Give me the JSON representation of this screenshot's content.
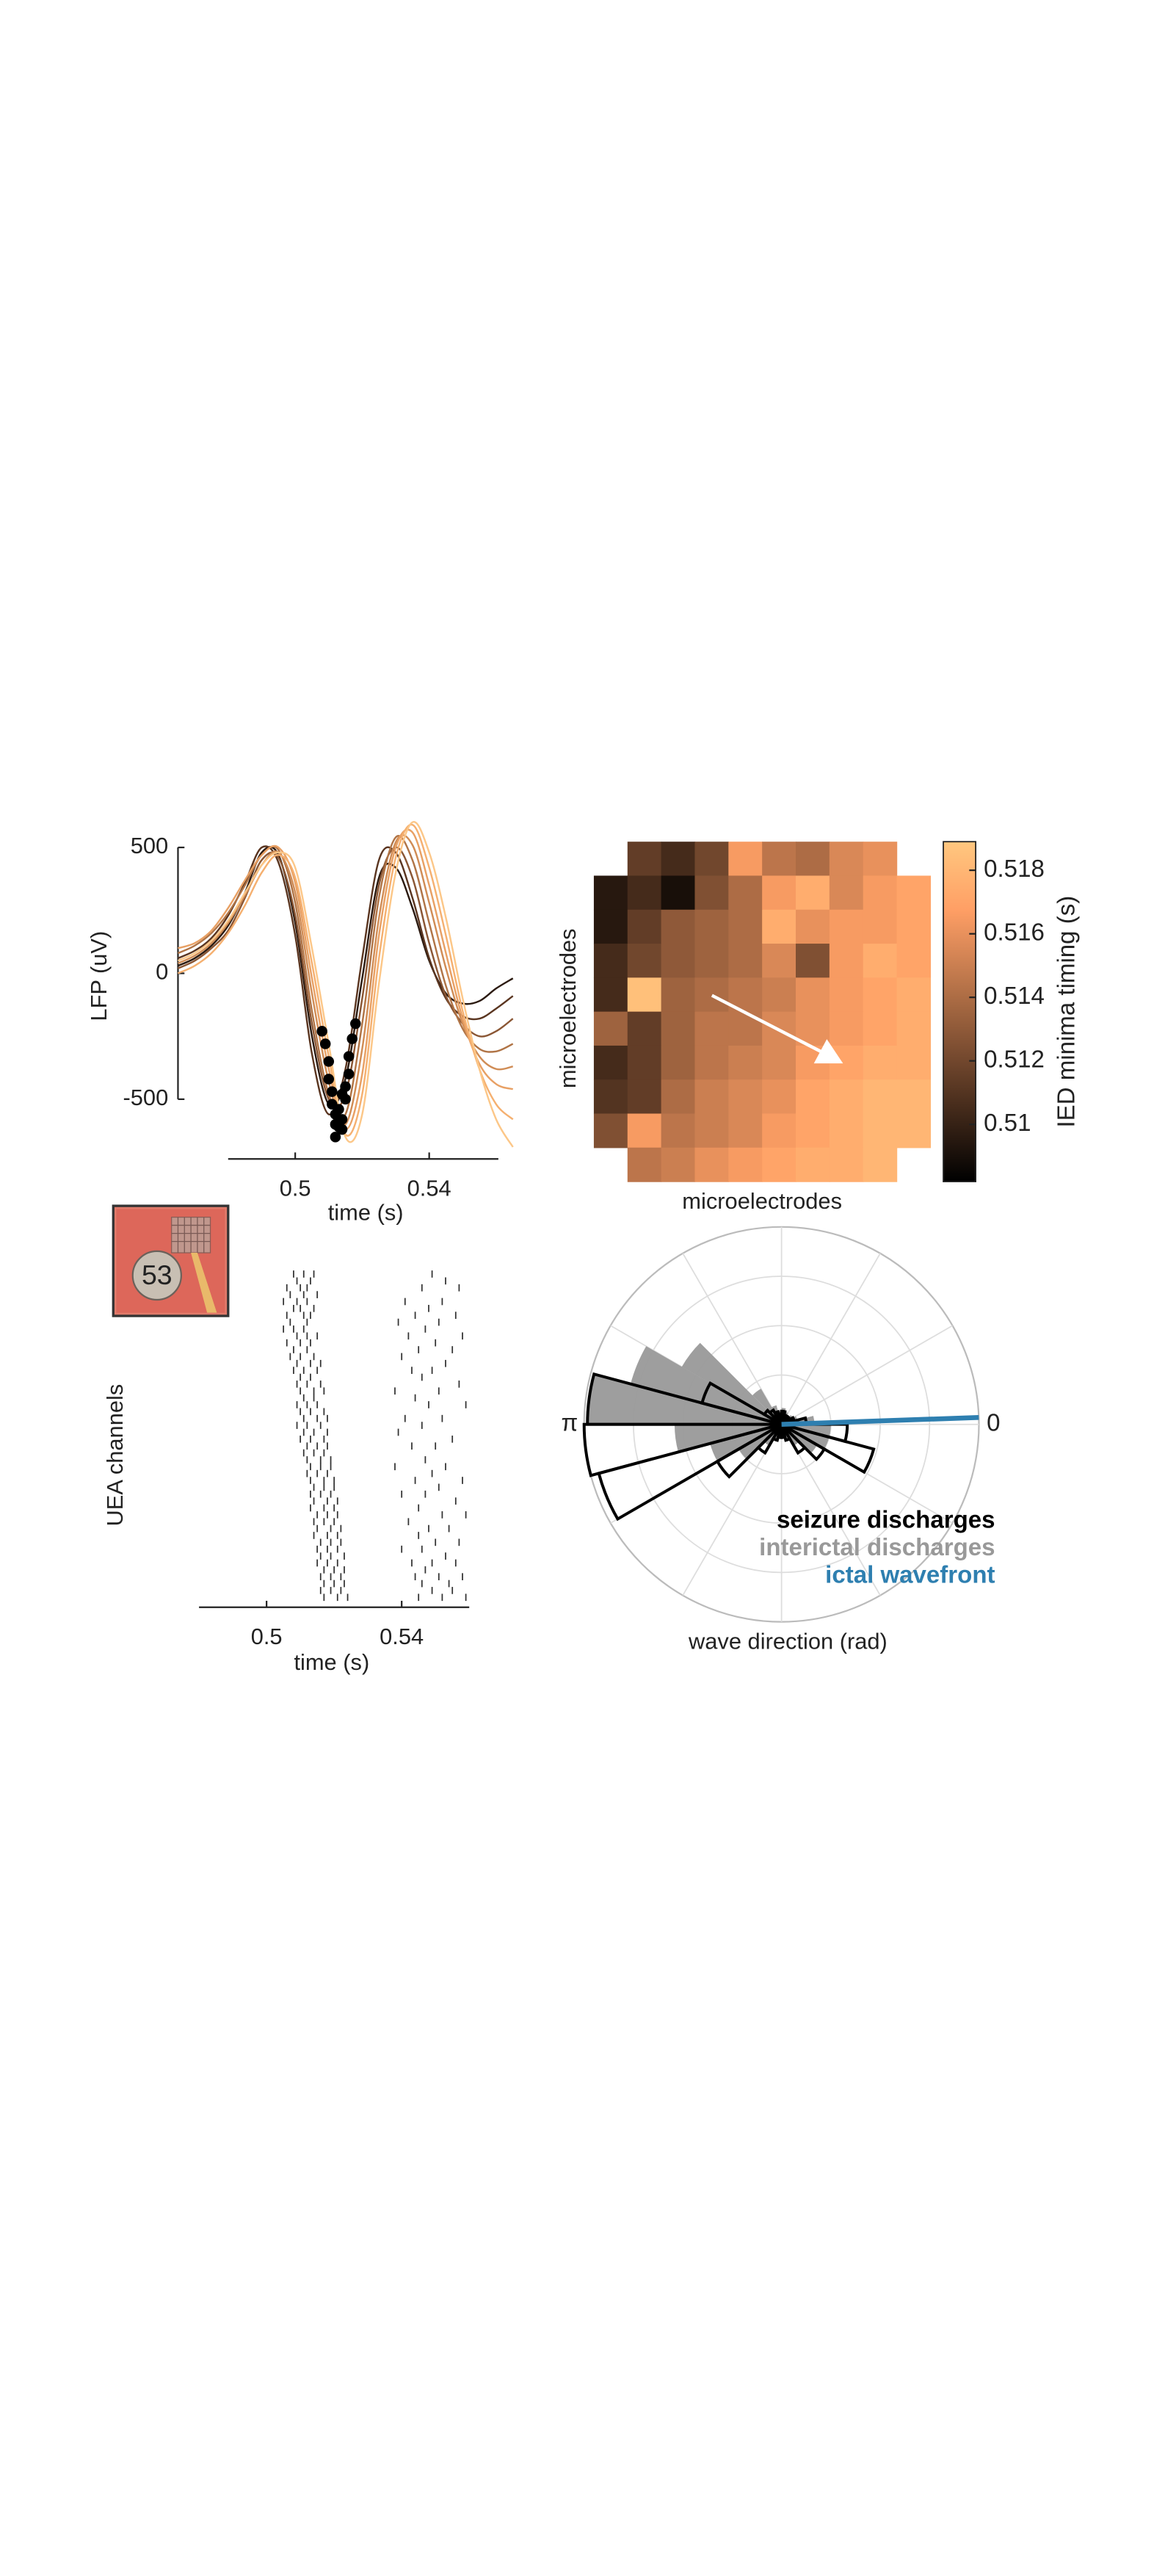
{
  "chart_data": [
    {
      "type": "line",
      "ylabel": "LFP (uV)",
      "xlabel": "time (s)",
      "xlim": [
        0.465,
        0.565
      ],
      "xticks": [
        0.5,
        0.54
      ],
      "ylim": [
        -750,
        600
      ],
      "yticks": [
        500,
        0,
        -500
      ],
      "x": [
        0.465,
        0.47,
        0.475,
        0.48,
        0.485,
        0.49,
        0.495,
        0.5,
        0.505,
        0.51,
        0.515,
        0.52,
        0.525,
        0.53,
        0.535,
        0.54,
        0.545,
        0.55,
        0.555,
        0.56,
        0.565
      ],
      "series": [
        {
          "color": "#2b1a10",
          "values": [
            30,
            60,
            110,
            190,
            320,
            480,
            470,
            200,
            -250,
            -520,
            -420,
            -20,
            380,
            420,
            260,
            50,
            -80,
            -120,
            -110,
            -60,
            -20
          ]
        },
        {
          "color": "#5a3520",
          "values": [
            60,
            90,
            140,
            230,
            360,
            500,
            440,
            150,
            -320,
            -560,
            -380,
            60,
            450,
            480,
            300,
            60,
            -100,
            -170,
            -180,
            -140,
            -90
          ]
        },
        {
          "color": "#8a5634",
          "values": [
            20,
            50,
            100,
            170,
            300,
            450,
            460,
            230,
            -200,
            -500,
            -480,
            -100,
            350,
            500,
            380,
            120,
            -90,
            -200,
            -250,
            -230,
            -180
          ]
        },
        {
          "color": "#b07446",
          "values": [
            80,
            110,
            160,
            240,
            350,
            470,
            490,
            280,
            -150,
            -480,
            -560,
            -200,
            300,
            540,
            450,
            200,
            -50,
            -220,
            -300,
            -310,
            -280
          ]
        },
        {
          "color": "#d08c55",
          "values": [
            40,
            70,
            120,
            200,
            310,
            430,
            480,
            320,
            -80,
            -430,
            -600,
            -300,
            220,
            520,
            510,
            280,
            20,
            -200,
            -330,
            -380,
            -370
          ]
        },
        {
          "color": "#e8a064",
          "values": [
            100,
            120,
            170,
            260,
            370,
            470,
            500,
            360,
            -20,
            -380,
            -620,
            -400,
            150,
            500,
            560,
            350,
            80,
            -180,
            -360,
            -440,
            -460
          ]
        },
        {
          "color": "#f5b070",
          "values": [
            0,
            30,
            80,
            160,
            270,
            400,
            470,
            380,
            40,
            -330,
            -640,
            -480,
            60,
            460,
            590,
            420,
            150,
            -150,
            -380,
            -520,
            -580
          ]
        },
        {
          "color": "#fcc788",
          "values": [
            50,
            80,
            130,
            210,
            320,
            430,
            480,
            420,
            100,
            -280,
            -650,
            -560,
            -40,
            400,
            600,
            480,
            220,
            -100,
            -380,
            -580,
            -690
          ]
        }
      ],
      "minima": {
        "color": "#000000",
        "x": [
          0.508,
          0.509,
          0.51,
          0.51,
          0.511,
          0.511,
          0.512,
          0.512,
          0.513,
          0.513,
          0.514,
          0.514,
          0.515,
          0.515,
          0.516,
          0.516,
          0.517,
          0.518,
          0.512,
          0.514
        ],
        "y": [
          -230,
          -280,
          -350,
          -420,
          -470,
          -520,
          -560,
          -600,
          -610,
          -540,
          -580,
          -620,
          -500,
          -450,
          -400,
          -330,
          -260,
          -200,
          -650,
          -480
        ]
      }
    },
    {
      "type": "heatmap",
      "xlabel": "microelectrodes",
      "ylabel": "microelectrodes",
      "colorbar_label": "IED minima timing (s)",
      "colormap": "copper",
      "clim": [
        0.5082,
        0.5189
      ],
      "cticks": [
        0.51,
        0.512,
        0.514,
        0.516,
        0.518
      ],
      "values": [
        [
          null,
          0.5115,
          0.5105,
          0.512,
          0.5165,
          0.5145,
          0.514,
          0.5155,
          0.516,
          null
        ],
        [
          0.5095,
          0.5105,
          0.509,
          0.5125,
          0.514,
          0.5165,
          0.5175,
          0.5155,
          0.5165,
          0.517
        ],
        [
          0.5095,
          0.5115,
          0.513,
          0.5135,
          0.514,
          0.5175,
          0.516,
          0.5165,
          0.5165,
          0.517
        ],
        [
          0.5105,
          0.512,
          0.513,
          0.5135,
          0.514,
          0.5155,
          0.5125,
          0.5165,
          0.5175,
          0.517
        ],
        [
          0.5105,
          0.5185,
          0.5135,
          0.514,
          0.5145,
          0.515,
          0.516,
          0.5165,
          0.517,
          0.5175
        ],
        [
          0.5135,
          0.5115,
          0.5135,
          0.5145,
          0.5145,
          0.5155,
          0.516,
          0.5165,
          0.517,
          0.5175
        ],
        [
          0.5105,
          0.5115,
          0.5135,
          0.5145,
          0.515,
          0.5155,
          0.5165,
          0.517,
          0.5175,
          0.5175
        ],
        [
          0.511,
          0.5115,
          0.514,
          0.515,
          0.5155,
          0.516,
          0.517,
          0.5175,
          0.518,
          0.518
        ],
        [
          0.5125,
          0.5165,
          0.5145,
          0.515,
          0.5155,
          0.5165,
          0.517,
          0.5175,
          0.518,
          0.518
        ],
        [
          null,
          0.5145,
          0.515,
          0.516,
          0.5165,
          0.517,
          0.5175,
          0.5175,
          0.518,
          null
        ]
      ]
    },
    {
      "type": "raster",
      "ylabel": "UEA channels",
      "xlabel": "time (s)",
      "inset_label": "53",
      "xlim": [
        0.48,
        0.56
      ],
      "xticks": [
        0.5,
        0.54
      ],
      "color": "#333333",
      "spike_times": [
        [
          0.508,
          0.511,
          0.514,
          0.549
        ],
        [
          0.509,
          0.513,
          0.553
        ],
        [
          0.506,
          0.51,
          0.512,
          0.546,
          0.557
        ],
        [
          0.507,
          0.511,
          0.515
        ],
        [
          0.505,
          0.509,
          0.512,
          0.541,
          0.552
        ],
        [
          0.508,
          0.51,
          0.514,
          0.548
        ],
        [
          0.506,
          0.511,
          0.513,
          0.544,
          0.556
        ],
        [
          0.507,
          0.512,
          0.539,
          0.551
        ],
        [
          0.505,
          0.508,
          0.511,
          0.547
        ],
        [
          0.509,
          0.512,
          0.515,
          0.542,
          0.558
        ],
        [
          0.506,
          0.51,
          0.513,
          0.55
        ],
        [
          0.508,
          0.512,
          0.545,
          0.555
        ],
        [
          0.507,
          0.51,
          0.514,
          0.54
        ],
        [
          0.509,
          0.513,
          0.516,
          0.553
        ],
        [
          0.508,
          0.511,
          0.515,
          0.543,
          0.549
        ],
        [
          0.51,
          0.513,
          0.546
        ],
        [
          0.509,
          0.512,
          0.516,
          0.557
        ],
        [
          0.51,
          0.514,
          0.517,
          0.538,
          0.551
        ],
        [
          0.511,
          0.514,
          0.544
        ],
        [
          0.509,
          0.512,
          0.515,
          0.548,
          0.559
        ],
        [
          0.51,
          0.513,
          0.517
        ],
        [
          0.511,
          0.515,
          0.518,
          0.541,
          0.552
        ],
        [
          0.509,
          0.512,
          0.516,
          0.546
        ],
        [
          0.511,
          0.514,
          0.518,
          0.539
        ],
        [
          0.51,
          0.513,
          0.517,
          0.555
        ],
        [
          0.512,
          0.515,
          0.518,
          0.543,
          0.55
        ],
        [
          0.511,
          0.514,
          0.517
        ],
        [
          0.512,
          0.516,
          0.519,
          0.547
        ],
        [
          0.513,
          0.516,
          0.519,
          0.538,
          0.553
        ],
        [
          0.512,
          0.515,
          0.518,
          0.549
        ],
        [
          0.513,
          0.517,
          0.52,
          0.544,
          0.558
        ],
        [
          0.514,
          0.517,
          0.52,
          0.551
        ],
        [
          0.513,
          0.516,
          0.519,
          0.54,
          0.547
        ],
        [
          0.514,
          0.518,
          0.521,
          0.556
        ],
        [
          0.513,
          0.517,
          0.52,
          0.545
        ],
        [
          0.515,
          0.518,
          0.521,
          0.552,
          0.559
        ],
        [
          0.514,
          0.517,
          0.52,
          0.542
        ],
        [
          0.515,
          0.519,
          0.522,
          0.548,
          0.554
        ],
        [
          0.514,
          0.518,
          0.521,
          0.545
        ],
        [
          0.516,
          0.519,
          0.522,
          0.55,
          0.557
        ],
        [
          0.515,
          0.518,
          0.521,
          0.54,
          0.546
        ],
        [
          0.516,
          0.519,
          0.523,
          0.553
        ],
        [
          0.515,
          0.518,
          0.521,
          0.543,
          0.549,
          0.556
        ],
        [
          0.517,
          0.52,
          0.523,
          0.547
        ],
        [
          0.516,
          0.519,
          0.522,
          0.544,
          0.551,
          0.558
        ],
        [
          0.517,
          0.52,
          0.523,
          0.546,
          0.554
        ],
        [
          0.516,
          0.519,
          0.522,
          0.549,
          0.555
        ],
        [
          0.517,
          0.521,
          0.524,
          0.545,
          0.552,
          0.559
        ]
      ]
    },
    {
      "type": "polar",
      "xlabel": "wave direction (rad)",
      "rlim": [
        0,
        120
      ],
      "rgrid": [
        30,
        60,
        90
      ],
      "thetagrid_deg": [
        0,
        30,
        60,
        90,
        120,
        150,
        180,
        210,
        240,
        270,
        300,
        330
      ],
      "thetaticks": [
        {
          "value": 0,
          "label": "0"
        },
        {
          "value": 180,
          "label": "π"
        }
      ],
      "theta_bins_deg": [
        0,
        15,
        30,
        45,
        60,
        75,
        90,
        105,
        120,
        135,
        150,
        165,
        180,
        195,
        210,
        225,
        240,
        255,
        270,
        285,
        300,
        315,
        330,
        345,
        360
      ],
      "series": [
        {
          "name": "seizure discharges",
          "color": "#000000",
          "values": [
            15,
            8,
            6,
            5,
            6,
            8,
            6,
            8,
            10,
            12,
            50,
            118,
            120,
            115,
            45,
            20,
            10,
            8,
            8,
            10,
            20,
            30,
            58,
            40
          ]
        },
        {
          "name": "interictal discharges",
          "color": "#999999",
          "values": [
            20,
            10,
            8,
            6,
            8,
            10,
            8,
            12,
            25,
            70,
            95,
            118,
            65,
            45,
            30,
            15,
            10,
            8,
            8,
            10,
            15,
            25,
            30,
            30
          ]
        },
        {
          "name": "ictal wavefront",
          "color": "#2e7fb0",
          "angle_deg": 2
        }
      ]
    }
  ]
}
